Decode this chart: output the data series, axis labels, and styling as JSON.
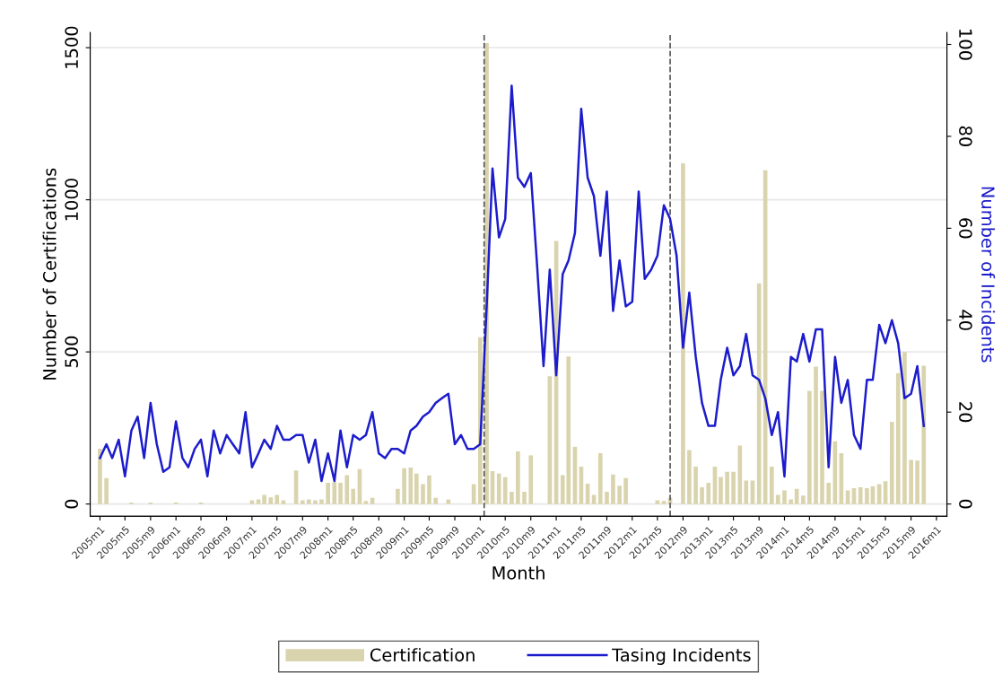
{
  "chart_data": {
    "type": "bar",
    "xlabel": "Month",
    "ylabel": "Number of Certifications",
    "y2label": "Number of Incidents",
    "x": [
      "2005-01",
      "2005-02",
      "2005-03",
      "2005-04",
      "2005-05",
      "2005-06",
      "2005-07",
      "2005-08",
      "2005-09",
      "2005-10",
      "2005-11",
      "2005-12",
      "2006-01",
      "2006-02",
      "2006-03",
      "2006-04",
      "2006-05",
      "2006-06",
      "2006-07",
      "2006-08",
      "2006-09",
      "2006-10",
      "2006-11",
      "2006-12",
      "2007-01",
      "2007-02",
      "2007-03",
      "2007-04",
      "2007-05",
      "2007-06",
      "2007-07",
      "2007-08",
      "2007-09",
      "2007-10",
      "2007-11",
      "2007-12",
      "2008-01",
      "2008-02",
      "2008-03",
      "2008-04",
      "2008-05",
      "2008-06",
      "2008-07",
      "2008-08",
      "2008-09",
      "2008-10",
      "2008-11",
      "2008-12",
      "2009-01",
      "2009-02",
      "2009-03",
      "2009-04",
      "2009-05",
      "2009-06",
      "2009-07",
      "2009-08",
      "2009-09",
      "2009-10",
      "2009-11",
      "2009-12",
      "2010-01",
      "2010-02",
      "2010-03",
      "2010-04",
      "2010-05",
      "2010-06",
      "2010-07",
      "2010-08",
      "2010-09",
      "2010-10",
      "2010-11",
      "2010-12",
      "2011-01",
      "2011-02",
      "2011-03",
      "2011-04",
      "2011-05",
      "2011-06",
      "2011-07",
      "2011-08",
      "2011-09",
      "2011-10",
      "2011-11",
      "2011-12",
      "2012-01",
      "2012-02",
      "2012-03",
      "2012-04",
      "2012-05",
      "2012-06",
      "2012-07",
      "2012-08",
      "2012-09",
      "2012-10",
      "2012-11",
      "2012-12",
      "2013-01",
      "2013-02",
      "2013-03",
      "2013-04",
      "2013-05",
      "2013-06",
      "2013-07",
      "2013-08",
      "2013-09",
      "2013-10",
      "2013-11",
      "2013-12",
      "2014-01",
      "2014-02",
      "2014-03",
      "2014-04",
      "2014-05",
      "2014-06",
      "2014-07",
      "2014-08",
      "2014-09",
      "2014-10",
      "2014-11",
      "2014-12",
      "2015-01",
      "2015-02",
      "2015-03",
      "2015-04",
      "2015-05",
      "2015-06",
      "2015-07",
      "2015-08",
      "2015-09",
      "2015-10",
      "2015-11"
    ],
    "series": [
      {
        "name": "Certification",
        "color": "#d9d4ad",
        "values": [
          182,
          85,
          0,
          0,
          0,
          5,
          0,
          0,
          5,
          0,
          0,
          0,
          5,
          0,
          0,
          0,
          5,
          0,
          0,
          0,
          0,
          0,
          0,
          0,
          12,
          15,
          30,
          22,
          30,
          12,
          0,
          110,
          12,
          15,
          12,
          15,
          70,
          72,
          70,
          95,
          50,
          115,
          10,
          20,
          0,
          0,
          0,
          50,
          118,
          120,
          100,
          65,
          94,
          20,
          0,
          15,
          0,
          0,
          0,
          65,
          548,
          1515,
          108,
          100,
          88,
          40,
          173,
          40,
          160,
          0,
          0,
          420,
          865,
          95,
          485,
          188,
          123,
          67,
          30,
          167,
          40,
          97,
          60,
          85,
          0,
          0,
          0,
          0,
          12,
          10,
          20,
          0,
          1120,
          177,
          123,
          55,
          70,
          123,
          89,
          106,
          106,
          192,
          77,
          77,
          725,
          1097,
          123,
          30,
          45,
          15,
          50,
          28,
          372,
          452,
          372,
          70,
          206,
          167,
          45,
          52,
          55,
          52,
          58,
          65,
          75,
          270,
          430,
          500,
          145,
          143,
          455
        ]
      },
      {
        "name": "Tasing Incidents",
        "type": "line",
        "axis": "y2",
        "color": "#1c1ccc",
        "values": [
          10,
          13,
          10,
          14,
          6,
          16,
          19,
          10,
          22,
          13,
          7,
          8,
          18,
          10,
          8,
          12,
          14,
          6,
          16,
          11,
          15,
          13,
          11,
          20,
          8,
          11,
          14,
          12,
          17,
          14,
          14,
          15,
          15,
          9,
          14,
          5,
          11,
          5,
          16,
          8,
          15,
          14,
          15,
          20,
          11,
          10,
          12,
          12,
          11,
          16,
          17,
          19,
          20,
          22,
          23,
          24,
          13,
          15,
          12,
          12,
          13,
          43,
          73,
          58,
          62,
          91,
          71,
          69,
          72,
          52,
          30,
          51,
          28,
          50,
          53,
          59,
          86,
          71,
          67,
          54,
          68,
          42,
          53,
          43,
          44,
          68,
          49,
          51,
          54,
          65,
          62,
          54,
          34,
          46,
          32,
          22,
          17,
          17,
          27,
          34,
          28,
          30,
          37,
          28,
          27,
          23,
          15,
          20,
          6,
          32,
          31,
          37,
          31,
          38,
          38,
          8,
          32,
          22,
          27,
          15,
          12,
          27,
          27,
          39,
          35,
          40,
          35,
          23,
          24,
          30,
          17
        ]
      }
    ],
    "xlim": [
      "2004-11-15",
      "2016-02-20"
    ],
    "xticks": [
      {
        "value": "2005-01",
        "label": "2005m1"
      },
      {
        "value": "2005-05",
        "label": "2005m5"
      },
      {
        "value": "2005-09",
        "label": "2005m9"
      },
      {
        "value": "2006-01",
        "label": "2006m1"
      },
      {
        "value": "2006-05",
        "label": "2006m5"
      },
      {
        "value": "2006-09",
        "label": "2006m9"
      },
      {
        "value": "2007-01",
        "label": "2007m1"
      },
      {
        "value": "2007-05",
        "label": "2007m5"
      },
      {
        "value": "2007-09",
        "label": "2007m9"
      },
      {
        "value": "2008-01",
        "label": "2008m1"
      },
      {
        "value": "2008-05",
        "label": "2008m5"
      },
      {
        "value": "2008-09",
        "label": "2008m9"
      },
      {
        "value": "2009-01",
        "label": "2009m1"
      },
      {
        "value": "2009-05",
        "label": "2009m5"
      },
      {
        "value": "2009-09",
        "label": "2009m9"
      },
      {
        "value": "2010-01",
        "label": "2010m1"
      },
      {
        "value": "2010-05",
        "label": "2010m5"
      },
      {
        "value": "2010-09",
        "label": "2010m9"
      },
      {
        "value": "2011-01",
        "label": "2011m1"
      },
      {
        "value": "2011-05",
        "label": "2011m5"
      },
      {
        "value": "2011-09",
        "label": "2011m9"
      },
      {
        "value": "2012-01",
        "label": "2012m1"
      },
      {
        "value": "2012-05",
        "label": "2012m5"
      },
      {
        "value": "2012-09",
        "label": "2012m9"
      },
      {
        "value": "2013-01",
        "label": "2013m1"
      },
      {
        "value": "2013-05",
        "label": "2013m5"
      },
      {
        "value": "2013-09",
        "label": "2013m9"
      },
      {
        "value": "2014-01",
        "label": "2014m1"
      },
      {
        "value": "2014-05",
        "label": "2014m5"
      },
      {
        "value": "2014-09",
        "label": "2014m9"
      },
      {
        "value": "2015-01",
        "label": "2015m1"
      },
      {
        "value": "2015-05",
        "label": "2015m5"
      },
      {
        "value": "2015-09",
        "label": "2015m9"
      },
      {
        "value": "2016-01",
        "label": "2016m1"
      }
    ],
    "ylim": [
      -40,
      1550
    ],
    "yticks": [
      0,
      500,
      1000,
      1500
    ],
    "y2lim": [
      -2.65,
      102.6
    ],
    "y2ticks": [
      0,
      20,
      40,
      60,
      80,
      100
    ],
    "ref_lines": [
      {
        "axis": "x",
        "value": "2010-01-20",
        "color": "#555555",
        "line_style": "dashed"
      },
      {
        "axis": "x",
        "value": "2012-07-01",
        "color": "#555555",
        "line_style": "dashed"
      }
    ],
    "grid": "y",
    "legend": "bottom",
    "line_style": "solid",
    "marker": "none"
  }
}
